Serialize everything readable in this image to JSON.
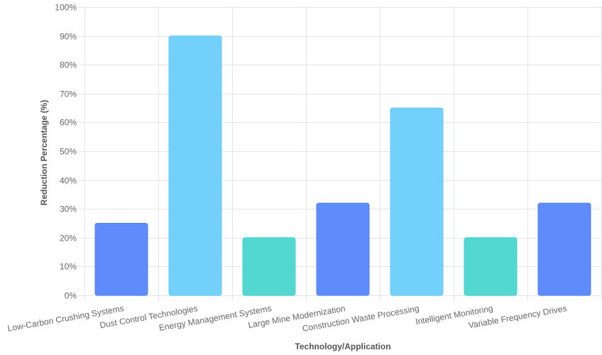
{
  "chart_data": {
    "type": "bar",
    "title": "",
    "xlabel": "Technology/Application",
    "ylabel": "Reduction Percentage (%)",
    "ylim": [
      0,
      100
    ],
    "y_ticks": [
      "0%",
      "10%",
      "20%",
      "30%",
      "40%",
      "50%",
      "60%",
      "70%",
      "80%",
      "90%",
      "100%"
    ],
    "grid": true,
    "legend": "none",
    "categories": [
      "Low-Carbon Crushing Systems",
      "Dust Control Technologies",
      "Energy Management Systems",
      "Large Mine Modernization",
      "Construction Waste Processing",
      "Intelligent Monitoring",
      "Variable Frequency Drives"
    ],
    "values": [
      25,
      90,
      20,
      32,
      65,
      20,
      32
    ],
    "colors": [
      "#4d7ffb",
      "#63cbfb",
      "#40d4cc",
      "#4d7ffb",
      "#63cbfb",
      "#40d4cc",
      "#4d7ffb"
    ]
  }
}
